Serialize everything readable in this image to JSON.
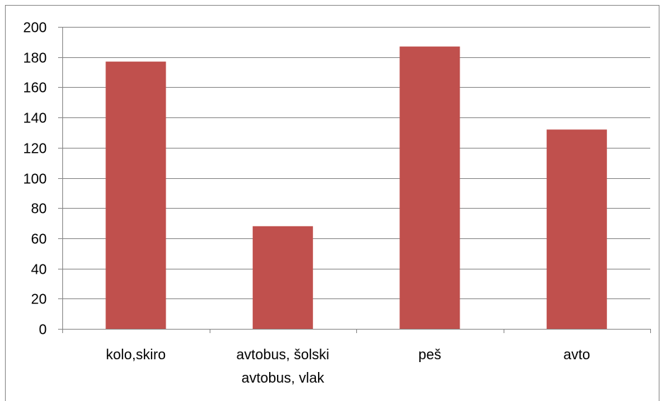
{
  "chart_data": {
    "type": "bar",
    "categories": [
      [
        "kolo,skiro"
      ],
      [
        "avtobus, šolski",
        "avtobus, vlak"
      ],
      [
        "peš"
      ],
      [
        "avto"
      ]
    ],
    "values": [
      177,
      68,
      187,
      132
    ],
    "ylim": [
      0,
      200
    ],
    "yticks": [
      0,
      20,
      40,
      60,
      80,
      100,
      120,
      140,
      160,
      180,
      200
    ],
    "grid": true,
    "legend": "none",
    "title": "",
    "xlabel": "",
    "ylabel": "",
    "colors": {
      "bar": "#c0504d",
      "grid": "#868686",
      "axis": "#868686"
    }
  }
}
